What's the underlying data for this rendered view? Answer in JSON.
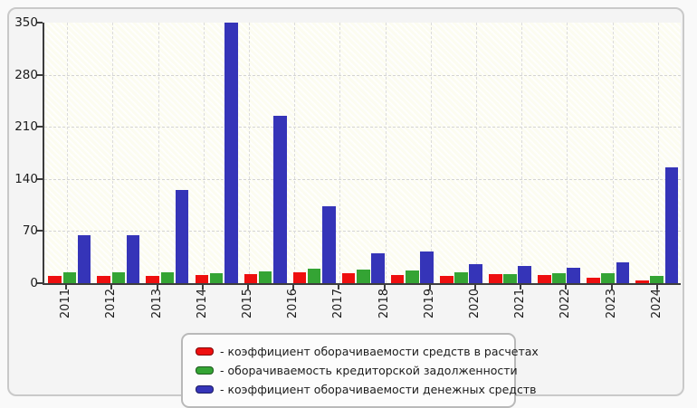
{
  "chart_data": {
    "type": "bar",
    "title": "",
    "xlabel": "",
    "ylabel": "",
    "categories": [
      "2011",
      "2012",
      "2013",
      "2014",
      "2015",
      "2016",
      "2017",
      "2018",
      "2019",
      "2020",
      "2021",
      "2022",
      "2023",
      "2024"
    ],
    "y_ticks": [
      0,
      70,
      140,
      210,
      280,
      350
    ],
    "ylim": [
      0,
      350
    ],
    "grid": "dashed horizontal and vertical gridlines on hatched pale background",
    "legend_position": "bottom-center",
    "bar_groups_rendered": 13,
    "series": [
      {
        "name": "коэффициент оборачиваемости средств в расчетах",
        "key": "settlements",
        "color": "#ee0f0f",
        "values": [
          10,
          10,
          10,
          11,
          12,
          14,
          13,
          11,
          10,
          12,
          11,
          7,
          4
        ]
      },
      {
        "name": "оборачиваемость кредиторской задолженности",
        "key": "payables",
        "color": "#34a434",
        "values": [
          15,
          14,
          15,
          13,
          16,
          19,
          18,
          17,
          15,
          12,
          13,
          13,
          10
        ]
      },
      {
        "name": "коэффициент оборачиваемости денежных средств",
        "key": "cash",
        "color": "#3534b8",
        "values": [
          65,
          65,
          125,
          350,
          225,
          103,
          40,
          42,
          26,
          23,
          21,
          28,
          156
        ]
      }
    ],
    "legend": [
      "- коэффициент оборачиваемости средств в расчетах",
      "- оборачиваемость кредиторской задолженности",
      "- коэффициент оборачиваемости денежных средств"
    ]
  }
}
